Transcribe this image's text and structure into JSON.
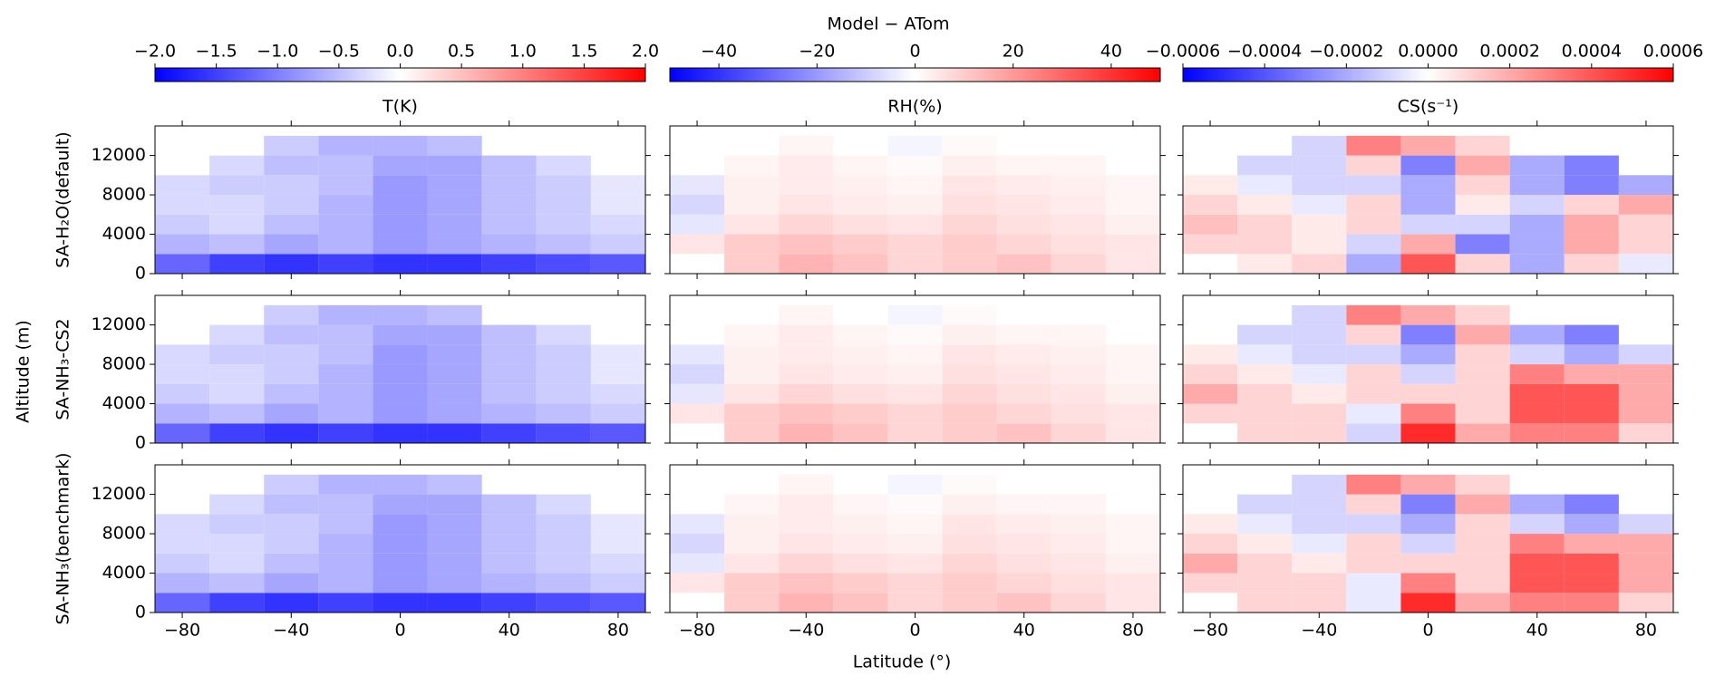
{
  "chart_data": {
    "type": "heatmap-grid",
    "title": "Model − ATom",
    "xlabel": "Latitude (°)",
    "ylabel": "Altitude (m)",
    "xlim": [
      -90,
      90
    ],
    "xticks": [
      {
        "value": -80,
        "label": "−80"
      },
      {
        "value": -40,
        "label": "−40"
      },
      0,
      40,
      80
    ],
    "ylim": [
      0,
      15000
    ],
    "yticks": [
      0,
      4000,
      8000,
      12000
    ],
    "x_bins": [
      -90,
      -70,
      -50,
      -30,
      -10,
      10,
      30,
      50,
      70,
      90
    ],
    "y_bins": [
      0,
      2000,
      4000,
      6000,
      8000,
      10000,
      12000,
      14000
    ],
    "colormap": [
      "#0000ff",
      "#ffffff",
      "#ff0000"
    ],
    "columns": [
      {
        "title": "T(K)",
        "clim": [
          -2,
          2
        ],
        "cticks": [
          {
            "value": -2,
            "label": "−2.0"
          },
          {
            "value": -1.5,
            "label": "−1.5"
          },
          {
            "value": -1,
            "label": "−1.0"
          },
          {
            "value": -0.5,
            "label": "−0.5"
          },
          {
            "value": 0,
            "label": "0.0"
          },
          0.5,
          {
            "value": 1,
            "label": "1.0"
          },
          1.5,
          {
            "value": 2,
            "label": "2.0"
          }
        ]
      },
      {
        "title": "RH(%)",
        "clim": [
          -50,
          50
        ],
        "cticks": [
          {
            "value": -40,
            "label": "−40"
          },
          {
            "value": -20,
            "label": "−20"
          },
          0,
          20,
          40
        ]
      },
      {
        "title": "CS(s⁻¹)",
        "clim": [
          -0.0006,
          0.0006
        ],
        "cticks": [
          {
            "value": -0.0006,
            "label": "−0.0006"
          },
          {
            "value": -0.0004,
            "label": "−0.0004"
          },
          {
            "value": -0.0002,
            "label": "−0.0002"
          },
          {
            "value": 0,
            "label": "0.0000"
          },
          {
            "value": 0.0002,
            "label": "0.0002"
          },
          {
            "value": 0.0004,
            "label": "0.0004"
          },
          {
            "value": 0.0006,
            "label": "0.0006"
          }
        ]
      }
    ],
    "rows": [
      {
        "label": "SA-H₂O(default)"
      },
      {
        "label": "SA-NH₃-CS2"
      },
      {
        "label": "SA-NH₃(benchmark)"
      }
    ],
    "panels": [
      [
        {
          "values": [
            [
              -1.2,
              -1.5,
              -1.6,
              -1.5,
              -1.6,
              -1.6,
              -1.5,
              -1.4,
              -1.3
            ],
            [
              -0.6,
              -0.5,
              -0.7,
              -0.6,
              -0.8,
              -0.7,
              -0.6,
              -0.5,
              -0.4
            ],
            [
              -0.4,
              -0.3,
              -0.5,
              -0.6,
              -0.8,
              -0.7,
              -0.5,
              -0.4,
              -0.3
            ],
            [
              -0.3,
              -0.3,
              -0.4,
              -0.6,
              -0.8,
              -0.7,
              -0.5,
              -0.4,
              -0.2
            ],
            [
              -0.3,
              -0.4,
              -0.4,
              -0.5,
              -0.8,
              -0.7,
              -0.5,
              -0.4,
              -0.2
            ],
            [
              null,
              -0.3,
              -0.5,
              -0.5,
              -0.7,
              -0.7,
              -0.5,
              -0.3,
              null
            ],
            [
              null,
              null,
              -0.4,
              -0.6,
              -0.6,
              -0.5,
              null,
              null,
              null
            ]
          ]
        },
        {
          "values": [
            [
              null,
              10,
              15,
              12,
              8,
              10,
              12,
              8,
              5
            ],
            [
              5,
              10,
              12,
              10,
              8,
              10,
              8,
              6,
              5
            ],
            [
              -5,
              5,
              8,
              6,
              5,
              8,
              6,
              5,
              3
            ],
            [
              -8,
              3,
              5,
              4,
              3,
              6,
              5,
              4,
              2
            ],
            [
              -5,
              3,
              4,
              3,
              2,
              5,
              4,
              3,
              2
            ],
            [
              null,
              2,
              4,
              2,
              1,
              3,
              2,
              2,
              null
            ],
            [
              null,
              null,
              2,
              0,
              -2,
              1,
              null,
              null,
              null
            ]
          ]
        },
        {
          "values": [
            [
              null,
              5e-05,
              0.0001,
              -0.0002,
              0.0004,
              0.0001,
              -0.0002,
              0.0001,
              -5e-05
            ],
            [
              0.0001,
              0.0001,
              5e-05,
              -0.0001,
              0.0002,
              -0.0003,
              -0.0002,
              0.0002,
              0.0001
            ],
            [
              0.00015,
              0.0001,
              5e-05,
              0.0001,
              -0.0001,
              -0.0001,
              -0.0002,
              0.0002,
              0.0001
            ],
            [
              0.0001,
              5e-05,
              -5e-05,
              0.0001,
              -0.0002,
              5e-05,
              -0.0001,
              0.0001,
              0.0002
            ],
            [
              5e-05,
              -5e-05,
              -0.0001,
              -0.0001,
              -0.0002,
              0.0001,
              -0.0002,
              -0.0003,
              -0.0002
            ],
            [
              null,
              -0.0001,
              -0.0001,
              0.0001,
              -0.0003,
              0.0002,
              -0.0002,
              -0.0003,
              null
            ],
            [
              null,
              null,
              -0.0001,
              0.0003,
              0.0002,
              0.0001,
              null,
              null,
              null
            ]
          ]
        }
      ],
      [
        {
          "values": [
            [
              -1.2,
              -1.5,
              -1.6,
              -1.5,
              -1.6,
              -1.6,
              -1.5,
              -1.4,
              -1.3
            ],
            [
              -0.6,
              -0.5,
              -0.7,
              -0.6,
              -0.8,
              -0.7,
              -0.6,
              -0.5,
              -0.4
            ],
            [
              -0.4,
              -0.3,
              -0.5,
              -0.6,
              -0.8,
              -0.7,
              -0.5,
              -0.4,
              -0.3
            ],
            [
              -0.3,
              -0.3,
              -0.4,
              -0.6,
              -0.8,
              -0.7,
              -0.5,
              -0.4,
              -0.2
            ],
            [
              -0.3,
              -0.4,
              -0.4,
              -0.5,
              -0.8,
              -0.7,
              -0.5,
              -0.4,
              -0.2
            ],
            [
              null,
              -0.3,
              -0.5,
              -0.5,
              -0.7,
              -0.7,
              -0.5,
              -0.3,
              null
            ],
            [
              null,
              null,
              -0.4,
              -0.6,
              -0.6,
              -0.5,
              null,
              null,
              null
            ]
          ]
        },
        {
          "values": [
            [
              null,
              10,
              15,
              12,
              8,
              10,
              12,
              8,
              5
            ],
            [
              5,
              10,
              12,
              10,
              8,
              10,
              8,
              6,
              5
            ],
            [
              -5,
              5,
              8,
              6,
              5,
              8,
              6,
              5,
              3
            ],
            [
              -8,
              3,
              5,
              4,
              3,
              6,
              5,
              4,
              2
            ],
            [
              -5,
              3,
              4,
              3,
              2,
              5,
              4,
              3,
              2
            ],
            [
              null,
              2,
              4,
              2,
              1,
              3,
              2,
              2,
              null
            ],
            [
              null,
              null,
              2,
              0,
              -2,
              1,
              null,
              null,
              null
            ]
          ]
        },
        {
          "values": [
            [
              null,
              0.0001,
              0.0001,
              -0.0001,
              0.0005,
              0.0002,
              0.0003,
              0.0003,
              0.0001
            ],
            [
              0.0001,
              0.0001,
              0.0001,
              -5e-05,
              0.0003,
              0.0001,
              0.0004,
              0.0004,
              0.0002
            ],
            [
              0.0002,
              0.0001,
              5e-05,
              0.0001,
              0.0001,
              0.0001,
              0.0004,
              0.0004,
              0.0002
            ],
            [
              0.0001,
              5e-05,
              -5e-05,
              0.0001,
              -0.0001,
              0.0001,
              0.0003,
              0.0002,
              0.0002
            ],
            [
              5e-05,
              -5e-05,
              -0.0001,
              -0.0001,
              -0.0002,
              0.0001,
              -0.0001,
              -0.0002,
              -0.0001
            ],
            [
              null,
              -0.0001,
              -0.0001,
              0.0001,
              -0.0003,
              0.0002,
              -0.0002,
              -0.0003,
              null
            ],
            [
              null,
              null,
              -0.0001,
              0.0003,
              0.0002,
              0.0001,
              null,
              null,
              null
            ]
          ]
        }
      ],
      [
        {
          "values": [
            [
              -1.2,
              -1.5,
              -1.6,
              -1.5,
              -1.6,
              -1.6,
              -1.5,
              -1.4,
              -1.3
            ],
            [
              -0.6,
              -0.5,
              -0.7,
              -0.6,
              -0.8,
              -0.7,
              -0.6,
              -0.5,
              -0.4
            ],
            [
              -0.4,
              -0.3,
              -0.5,
              -0.6,
              -0.8,
              -0.7,
              -0.5,
              -0.4,
              -0.3
            ],
            [
              -0.3,
              -0.3,
              -0.4,
              -0.6,
              -0.8,
              -0.7,
              -0.5,
              -0.4,
              -0.2
            ],
            [
              -0.3,
              -0.4,
              -0.4,
              -0.5,
              -0.8,
              -0.7,
              -0.5,
              -0.4,
              -0.2
            ],
            [
              null,
              -0.3,
              -0.5,
              -0.5,
              -0.7,
              -0.7,
              -0.5,
              -0.3,
              null
            ],
            [
              null,
              null,
              -0.4,
              -0.6,
              -0.6,
              -0.5,
              null,
              null,
              null
            ]
          ]
        },
        {
          "values": [
            [
              null,
              10,
              15,
              12,
              8,
              10,
              12,
              8,
              5
            ],
            [
              5,
              10,
              12,
              10,
              8,
              10,
              8,
              6,
              5
            ],
            [
              -5,
              5,
              8,
              6,
              5,
              8,
              6,
              5,
              3
            ],
            [
              -8,
              3,
              5,
              4,
              3,
              6,
              5,
              4,
              2
            ],
            [
              -5,
              3,
              4,
              3,
              2,
              5,
              4,
              3,
              2
            ],
            [
              null,
              2,
              4,
              2,
              1,
              3,
              2,
              2,
              null
            ],
            [
              null,
              null,
              2,
              0,
              -2,
              1,
              null,
              null,
              null
            ]
          ]
        },
        {
          "values": [
            [
              null,
              0.0001,
              0.0001,
              -5e-05,
              0.0005,
              0.0002,
              0.0003,
              0.0003,
              0.0001
            ],
            [
              0.0001,
              0.0001,
              0.0001,
              -5e-05,
              0.0003,
              0.0001,
              0.0004,
              0.0004,
              0.0002
            ],
            [
              0.0002,
              0.0001,
              5e-05,
              0.0001,
              0.0001,
              0.0001,
              0.0004,
              0.0004,
              0.0002
            ],
            [
              0.0001,
              5e-05,
              -5e-05,
              0.0001,
              -0.0001,
              0.0001,
              0.0003,
              0.0002,
              0.0002
            ],
            [
              5e-05,
              -5e-05,
              -0.0001,
              -0.0001,
              -0.0002,
              0.0001,
              -0.0001,
              -0.0002,
              -0.0001
            ],
            [
              null,
              -0.0001,
              -0.0001,
              0.0001,
              -0.0003,
              0.0002,
              -0.0002,
              -0.0003,
              null
            ],
            [
              null,
              null,
              -0.0001,
              0.0003,
              0.0002,
              0.0001,
              null,
              null,
              null
            ]
          ]
        }
      ]
    ]
  }
}
